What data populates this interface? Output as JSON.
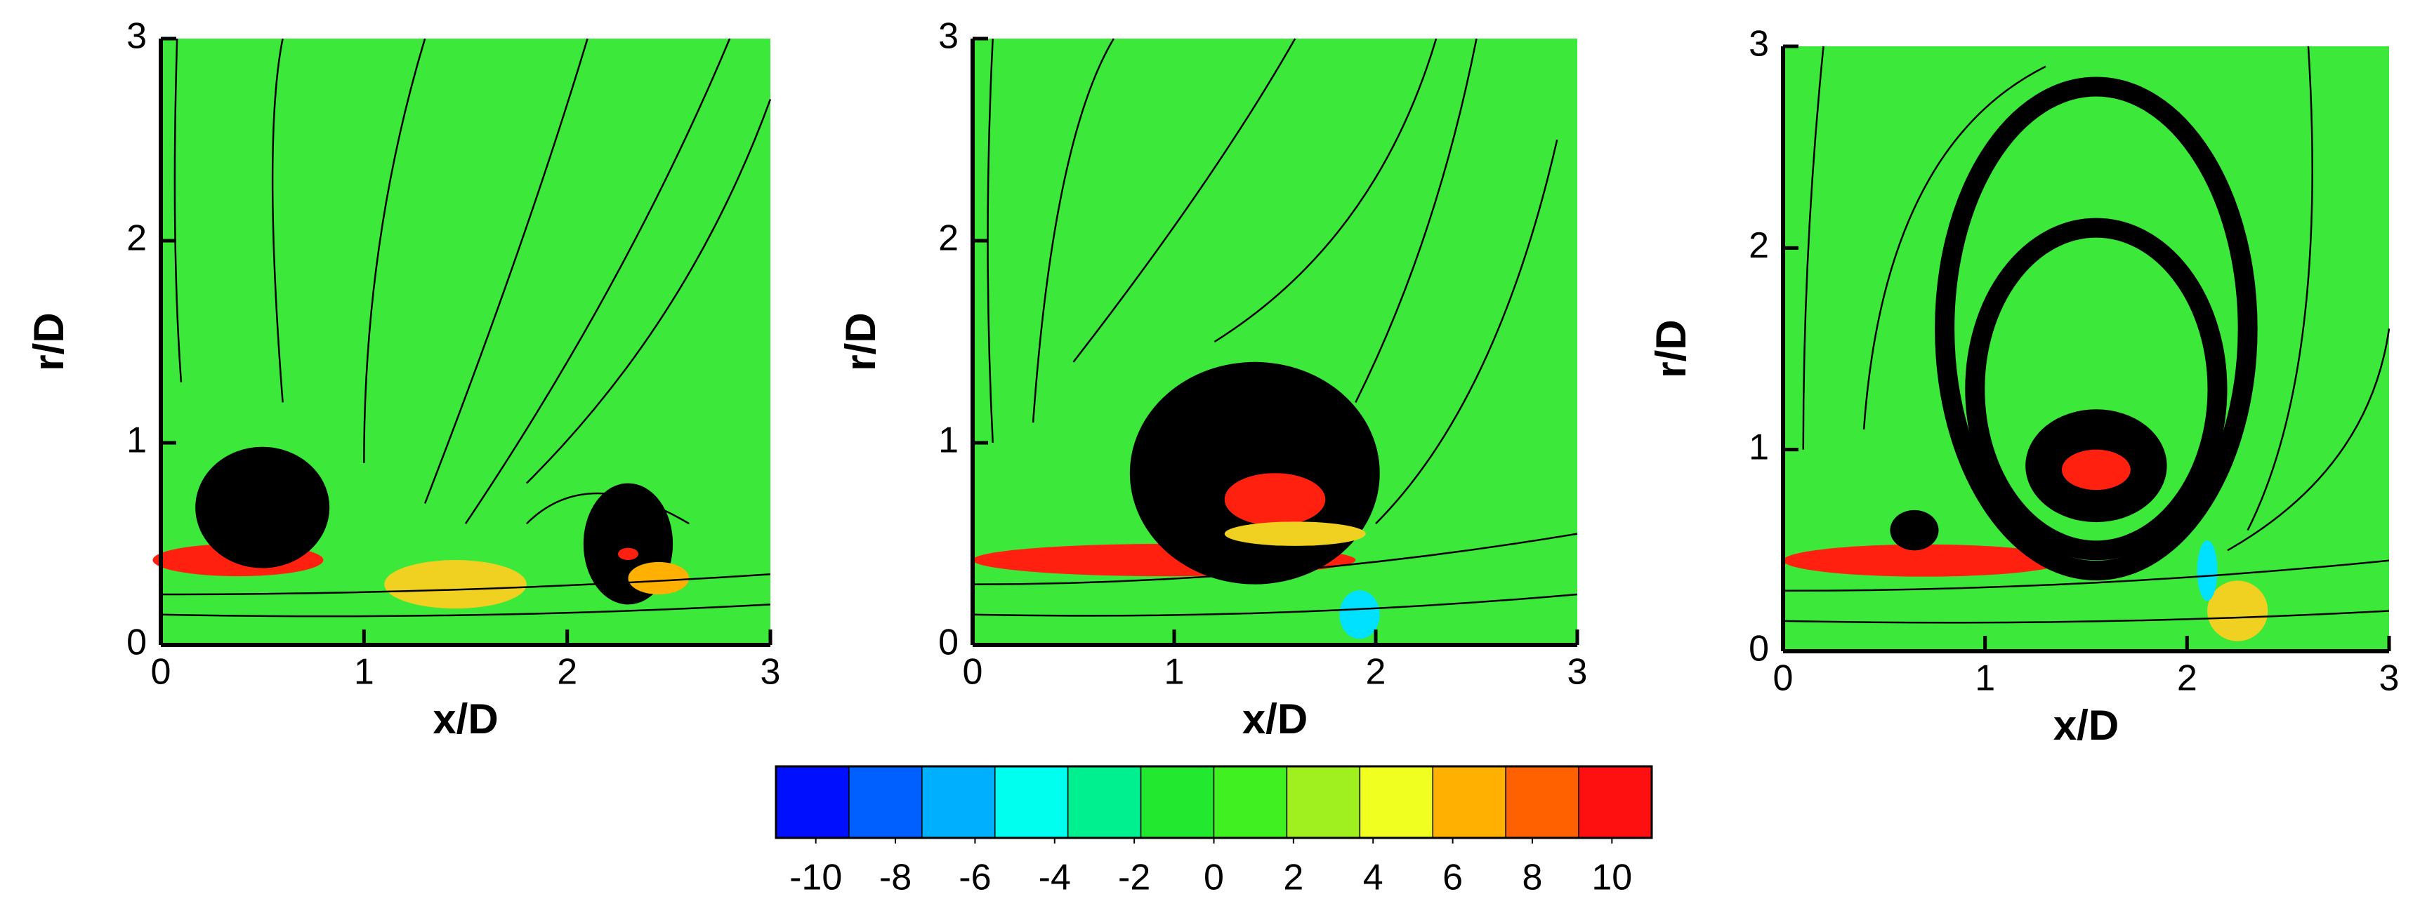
{
  "chart_data": [
    {
      "type": "contour",
      "xlabel": "x/D",
      "ylabel": "r/D",
      "xlim": [
        0,
        3
      ],
      "ylim": [
        0,
        3
      ],
      "xticks": [
        0,
        1,
        2,
        3
      ],
      "yticks": [
        0,
        1,
        2,
        3
      ],
      "background": "#3ce83a"
    },
    {
      "type": "contour",
      "xlabel": "x/D",
      "ylabel": "r/D",
      "xlim": [
        0,
        3
      ],
      "ylim": [
        0,
        3
      ],
      "xticks": [
        0,
        1,
        2,
        3
      ],
      "yticks": [
        0,
        1,
        2,
        3
      ],
      "background": "#3ce83a"
    },
    {
      "type": "contour",
      "xlabel": "x/D",
      "ylabel": "r/D",
      "xlim": [
        0,
        3
      ],
      "ylim": [
        0,
        3
      ],
      "xticks": [
        0,
        1,
        2,
        3
      ],
      "yticks": [
        0,
        1,
        2,
        3
      ],
      "background": "#3ce83a"
    },
    {
      "type": "colorbar",
      "xlim": [
        -11,
        11
      ],
      "xticks": [
        -10,
        -8,
        -6,
        -4,
        -2,
        0,
        2,
        4,
        6,
        8,
        10
      ],
      "colors": [
        "#0010ff",
        "#0060ff",
        "#00b0ff",
        "#00ffee",
        "#00f090",
        "#22e830",
        "#40f020",
        "#a0f020",
        "#f0ff20",
        "#ffb000",
        "#ff6000",
        "#ff1010"
      ]
    }
  ]
}
